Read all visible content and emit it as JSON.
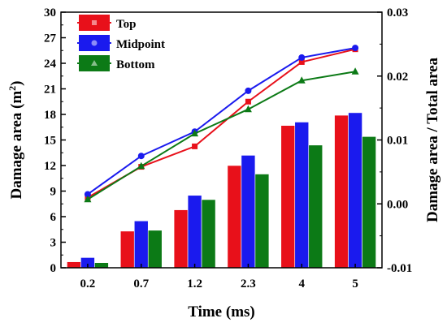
{
  "chart_data": {
    "type": "bar",
    "xlabel": "Time (ms)",
    "ylabel_main": "Damage area (m",
    "ylabel_sup": "2",
    "ylabel_tail": ")",
    "y2label": "Damage area / Total area",
    "categories": [
      "0.2",
      "0.7",
      "1.2",
      "2.3",
      "4",
      "5"
    ],
    "ylim": [
      0,
      30
    ],
    "yticks": [
      "0",
      "3",
      "6",
      "9",
      "12",
      "15",
      "18",
      "21",
      "24",
      "27",
      "30"
    ],
    "y2lim": [
      -0.01,
      0.03
    ],
    "y2ticks": [
      "-0.01",
      "0.00",
      "0.01",
      "0.02",
      "0.03"
    ],
    "legend_position": "top-left",
    "series": [
      {
        "name": "Top",
        "color": "#e8101a",
        "bar_values": [
          0.7,
          4.3,
          6.8,
          12.0,
          16.7,
          17.9
        ],
        "line_values": [
          0.001,
          0.0058,
          0.009,
          0.016,
          0.0222,
          0.0242
        ],
        "marker": "square"
      },
      {
        "name": "Midpoint",
        "color": "#1a1aee",
        "bar_values": [
          1.2,
          5.5,
          8.5,
          13.2,
          17.1,
          18.2
        ],
        "line_values": [
          0.0015,
          0.0075,
          0.0113,
          0.0177,
          0.0229,
          0.0244
        ],
        "marker": "circle"
      },
      {
        "name": "Bottom",
        "color": "#0c7a16",
        "bar_values": [
          0.6,
          4.4,
          8.0,
          11.0,
          14.4,
          15.4
        ],
        "line_values": [
          0.0007,
          0.0059,
          0.011,
          0.0148,
          0.0193,
          0.0207
        ],
        "marker": "triangle"
      }
    ]
  }
}
